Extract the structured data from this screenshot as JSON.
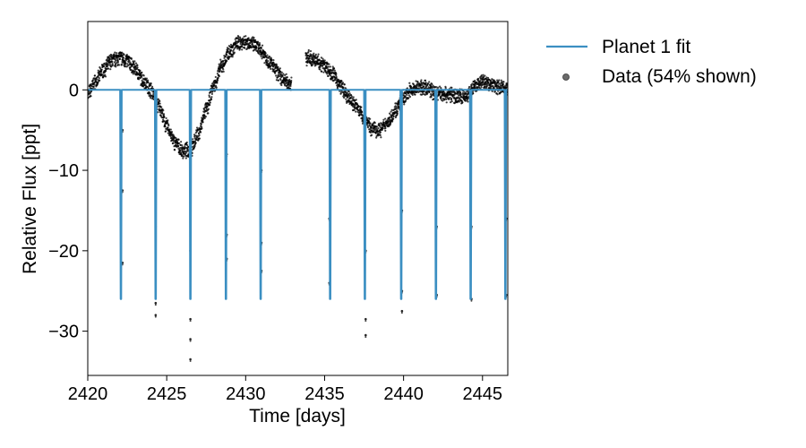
{
  "chart_data": {
    "type": "scatter",
    "xlabel": "Time [days]",
    "ylabel": "Relative Flux [ppt]",
    "xlim": [
      2420,
      2446.6
    ],
    "ylim": [
      -35.5,
      8.5
    ],
    "xticks": [
      2420,
      2425,
      2430,
      2435,
      2440,
      2445
    ],
    "yticks": [
      0,
      -10,
      -20,
      -30
    ],
    "legend_position": "outside-right",
    "legend": [
      {
        "label": "Planet 1 fit",
        "marker": "line",
        "color": "#3b8fc2"
      },
      {
        "label": "Data (54% shown)",
        "marker": "dot",
        "color": "#000000"
      }
    ],
    "series": [
      {
        "name": "Data (54% shown)",
        "kind": "points",
        "color": "#000000",
        "baseline_knots": [
          [
            2420.0,
            -0.5
          ],
          [
            2420.5,
            1.0
          ],
          [
            2421.0,
            2.5
          ],
          [
            2421.5,
            3.6
          ],
          [
            2422.0,
            4.0
          ],
          [
            2422.5,
            3.6
          ],
          [
            2423.0,
            2.6
          ],
          [
            2423.5,
            1.2
          ],
          [
            2424.0,
            0.0
          ],
          [
            2424.5,
            -2.0
          ],
          [
            2425.0,
            -4.5
          ],
          [
            2425.5,
            -6.5
          ],
          [
            2426.0,
            -7.6
          ],
          [
            2426.5,
            -7.5
          ],
          [
            2427.0,
            -5.5
          ],
          [
            2427.5,
            -2.5
          ],
          [
            2428.0,
            0.5
          ],
          [
            2428.5,
            3.0
          ],
          [
            2429.0,
            4.8
          ],
          [
            2429.5,
            5.8
          ],
          [
            2430.0,
            6.0
          ],
          [
            2430.5,
            5.6
          ],
          [
            2431.0,
            4.8
          ],
          [
            2431.5,
            3.5
          ],
          [
            2432.0,
            2.2
          ],
          [
            2432.4,
            1.2
          ],
          [
            2432.8,
            0.8
          ],
          [
            2433.9,
            4.0
          ],
          [
            2434.5,
            3.6
          ],
          [
            2435.0,
            3.0
          ],
          [
            2435.5,
            2.0
          ],
          [
            2436.0,
            0.5
          ],
          [
            2436.5,
            -1.0
          ],
          [
            2437.0,
            -2.0
          ],
          [
            2437.5,
            -3.5
          ],
          [
            2438.0,
            -4.8
          ],
          [
            2438.5,
            -5.0
          ],
          [
            2439.0,
            -4.0
          ],
          [
            2439.5,
            -2.5
          ],
          [
            2440.0,
            -1.0
          ],
          [
            2440.5,
            0.0
          ],
          [
            2441.0,
            0.3
          ],
          [
            2441.5,
            0.2
          ],
          [
            2442.0,
            -0.3
          ],
          [
            2442.5,
            -0.5
          ],
          [
            2443.0,
            -0.6
          ],
          [
            2443.5,
            -0.8
          ],
          [
            2444.0,
            -0.8
          ],
          [
            2444.5,
            0.3
          ],
          [
            2445.0,
            1.0
          ],
          [
            2445.5,
            0.7
          ],
          [
            2446.0,
            0.4
          ],
          [
            2446.6,
            0.2
          ]
        ],
        "gap": [
          2432.9,
          2433.8
        ],
        "transit_points": [
          [
            2422.2,
            -21.5
          ],
          [
            2422.2,
            -12.5
          ],
          [
            2422.2,
            -5.0
          ],
          [
            2424.3,
            -28.0
          ],
          [
            2424.3,
            -26.5
          ],
          [
            2424.3,
            -17.0
          ],
          [
            2426.5,
            -33.5
          ],
          [
            2426.5,
            -31.0
          ],
          [
            2426.5,
            -28.5
          ],
          [
            2426.5,
            -20.0
          ],
          [
            2428.8,
            -21.0
          ],
          [
            2428.8,
            -18.0
          ],
          [
            2428.8,
            -8.0
          ],
          [
            2431.0,
            -22.5
          ],
          [
            2431.0,
            -19.0
          ],
          [
            2431.0,
            -10.0
          ],
          [
            2435.3,
            -24.0
          ],
          [
            2435.3,
            -16.0
          ],
          [
            2437.6,
            -30.5
          ],
          [
            2437.6,
            -28.5
          ],
          [
            2437.6,
            -20.0
          ],
          [
            2439.9,
            -27.5
          ],
          [
            2439.9,
            -25.0
          ],
          [
            2439.9,
            -15.0
          ],
          [
            2442.1,
            -25.5
          ],
          [
            2442.1,
            -17.0
          ],
          [
            2444.3,
            -26.0
          ],
          [
            2444.3,
            -17.0
          ],
          [
            2446.5,
            -25.5
          ],
          [
            2446.5,
            -16.0
          ]
        ]
      },
      {
        "name": "Planet 1 fit",
        "kind": "line",
        "color": "#3b8fc2",
        "baseline": 0,
        "transit_depth": -26,
        "transit_times": [
          2422.1,
          2424.3,
          2426.5,
          2428.75,
          2430.95,
          2435.35,
          2437.55,
          2439.85,
          2442.05,
          2444.25,
          2446.45
        ]
      }
    ]
  }
}
